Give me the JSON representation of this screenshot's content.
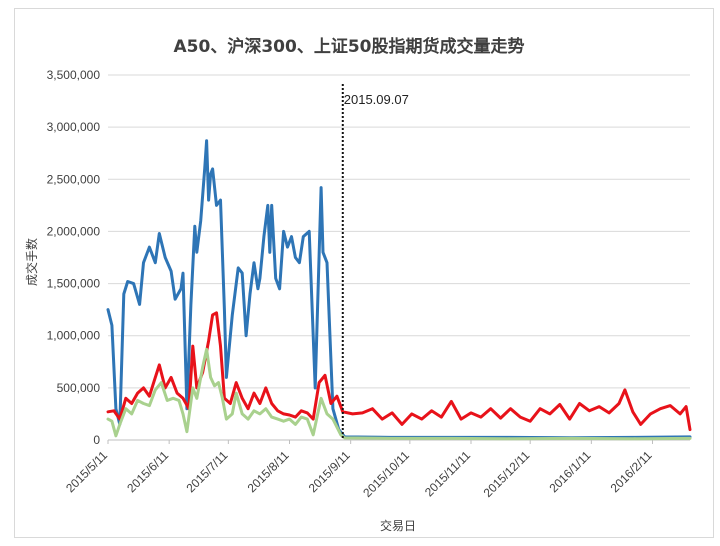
{
  "chart_data": {
    "type": "line",
    "title": "A50、沪深300、上证50股指期货成交量走势",
    "xlabel": "交易日",
    "ylabel": "成交手数",
    "ylim": [
      0,
      3500000
    ],
    "yticks": [
      "3,500,000",
      "3,000,000",
      "2,500,000",
      "2,000,000",
      "1,500,000",
      "1,000,000",
      "500,000",
      "0"
    ],
    "ytick_values": [
      3500000,
      3000000,
      2500000,
      2000000,
      1500000,
      1000000,
      500000,
      0
    ],
    "xlim": [
      "2015-05-11",
      "2016-03-01"
    ],
    "xticks": [
      {
        "label": "2015/5/11",
        "date": "2015-05-11"
      },
      {
        "label": "2015/6/11",
        "date": "2015-06-11"
      },
      {
        "label": "2015/7/11",
        "date": "2015-07-11"
      },
      {
        "label": "2015/8/11",
        "date": "2015-08-11"
      },
      {
        "label": "2015/9/11",
        "date": "2015-09-11"
      },
      {
        "label": "2015/10/11",
        "date": "2015-10-11"
      },
      {
        "label": "2015/11/11",
        "date": "2015-11-11"
      },
      {
        "label": "2015/12/11",
        "date": "2015-12-11"
      },
      {
        "label": "2016/1/11",
        "date": "2016-01-11"
      },
      {
        "label": "2016/2/11",
        "date": "2016-02-11"
      }
    ],
    "grid": true,
    "annotation": {
      "label": "2015.09.07",
      "date": "2015-09-07"
    },
    "series": [
      {
        "color": "#2e75b6",
        "points": [
          [
            "2015-05-11",
            1250000
          ],
          [
            "2015-05-13",
            1100000
          ],
          [
            "2015-05-15",
            300000
          ],
          [
            "2015-05-17",
            150000
          ],
          [
            "2015-05-19",
            1400000
          ],
          [
            "2015-05-21",
            1520000
          ],
          [
            "2015-05-24",
            1500000
          ],
          [
            "2015-05-27",
            1300000
          ],
          [
            "2015-05-29",
            1700000
          ],
          [
            "2015-06-01",
            1850000
          ],
          [
            "2015-06-04",
            1700000
          ],
          [
            "2015-06-06",
            1980000
          ],
          [
            "2015-06-09",
            1750000
          ],
          [
            "2015-06-12",
            1620000
          ],
          [
            "2015-06-14",
            1350000
          ],
          [
            "2015-06-17",
            1450000
          ],
          [
            "2015-06-18",
            1600000
          ],
          [
            "2015-06-20",
            300000
          ],
          [
            "2015-06-22",
            1300000
          ],
          [
            "2015-06-24",
            2050000
          ],
          [
            "2015-06-25",
            1800000
          ],
          [
            "2015-06-27",
            2100000
          ],
          [
            "2015-06-29",
            2600000
          ],
          [
            "2015-06-30",
            2870000
          ],
          [
            "2015-07-01",
            2300000
          ],
          [
            "2015-07-02",
            2550000
          ],
          [
            "2015-07-03",
            2600000
          ],
          [
            "2015-07-05",
            2250000
          ],
          [
            "2015-07-07",
            2300000
          ],
          [
            "2015-07-09",
            1250000
          ],
          [
            "2015-07-10",
            600000
          ],
          [
            "2015-07-13",
            1200000
          ],
          [
            "2015-07-16",
            1650000
          ],
          [
            "2015-07-18",
            1600000
          ],
          [
            "2015-07-20",
            1000000
          ],
          [
            "2015-07-22",
            1400000
          ],
          [
            "2015-07-24",
            1700000
          ],
          [
            "2015-07-26",
            1450000
          ],
          [
            "2015-07-27",
            1550000
          ],
          [
            "2015-07-29",
            1950000
          ],
          [
            "2015-07-31",
            2250000
          ],
          [
            "2015-08-01",
            1800000
          ],
          [
            "2015-08-02",
            2250000
          ],
          [
            "2015-08-04",
            1550000
          ],
          [
            "2015-08-06",
            1450000
          ],
          [
            "2015-08-08",
            2000000
          ],
          [
            "2015-08-10",
            1850000
          ],
          [
            "2015-08-12",
            1950000
          ],
          [
            "2015-08-14",
            1750000
          ],
          [
            "2015-08-16",
            1700000
          ],
          [
            "2015-08-18",
            1950000
          ],
          [
            "2015-08-21",
            2000000
          ],
          [
            "2015-08-24",
            500000
          ],
          [
            "2015-08-27",
            2420000
          ],
          [
            "2015-08-28",
            1800000
          ],
          [
            "2015-08-30",
            1700000
          ],
          [
            "2015-09-02",
            300000
          ],
          [
            "2015-09-05",
            100000
          ],
          [
            "2015-09-08",
            30000
          ],
          [
            "2015-10-01",
            25000
          ],
          [
            "2015-11-01",
            25000
          ],
          [
            "2015-12-01",
            25000
          ],
          [
            "2016-01-01",
            22000
          ],
          [
            "2016-02-01",
            25000
          ],
          [
            "2016-03-01",
            30000
          ]
        ]
      },
      {
        "color": "#e8121a",
        "points": [
          [
            "2015-05-11",
            270000
          ],
          [
            "2015-05-14",
            280000
          ],
          [
            "2015-05-17",
            200000
          ],
          [
            "2015-05-20",
            400000
          ],
          [
            "2015-05-23",
            350000
          ],
          [
            "2015-05-26",
            450000
          ],
          [
            "2015-05-29",
            500000
          ],
          [
            "2015-06-01",
            420000
          ],
          [
            "2015-06-04",
            600000
          ],
          [
            "2015-06-06",
            720000
          ],
          [
            "2015-06-09",
            500000
          ],
          [
            "2015-06-12",
            600000
          ],
          [
            "2015-06-15",
            450000
          ],
          [
            "2015-06-18",
            400000
          ],
          [
            "2015-06-21",
            300000
          ],
          [
            "2015-06-23",
            900000
          ],
          [
            "2015-06-25",
            500000
          ],
          [
            "2015-06-28",
            650000
          ],
          [
            "2015-07-01",
            950000
          ],
          [
            "2015-07-03",
            1200000
          ],
          [
            "2015-07-05",
            1220000
          ],
          [
            "2015-07-07",
            900000
          ],
          [
            "2015-07-09",
            400000
          ],
          [
            "2015-07-12",
            350000
          ],
          [
            "2015-07-15",
            550000
          ],
          [
            "2015-07-18",
            400000
          ],
          [
            "2015-07-21",
            300000
          ],
          [
            "2015-07-24",
            450000
          ],
          [
            "2015-07-27",
            350000
          ],
          [
            "2015-07-30",
            500000
          ],
          [
            "2015-08-02",
            350000
          ],
          [
            "2015-08-05",
            280000
          ],
          [
            "2015-08-08",
            250000
          ],
          [
            "2015-08-11",
            240000
          ],
          [
            "2015-08-14",
            220000
          ],
          [
            "2015-08-17",
            280000
          ],
          [
            "2015-08-20",
            260000
          ],
          [
            "2015-08-23",
            200000
          ],
          [
            "2015-08-26",
            550000
          ],
          [
            "2015-08-29",
            620000
          ],
          [
            "2015-09-01",
            350000
          ],
          [
            "2015-09-04",
            420000
          ],
          [
            "2015-09-07",
            270000
          ],
          [
            "2015-09-12",
            250000
          ],
          [
            "2015-09-17",
            260000
          ],
          [
            "2015-09-22",
            300000
          ],
          [
            "2015-09-27",
            200000
          ],
          [
            "2015-10-02",
            260000
          ],
          [
            "2015-10-07",
            150000
          ],
          [
            "2015-10-12",
            250000
          ],
          [
            "2015-10-17",
            200000
          ],
          [
            "2015-10-22",
            280000
          ],
          [
            "2015-10-27",
            220000
          ],
          [
            "2015-11-01",
            370000
          ],
          [
            "2015-11-06",
            200000
          ],
          [
            "2015-11-11",
            260000
          ],
          [
            "2015-11-16",
            220000
          ],
          [
            "2015-11-21",
            300000
          ],
          [
            "2015-11-26",
            210000
          ],
          [
            "2015-12-01",
            300000
          ],
          [
            "2015-12-06",
            220000
          ],
          [
            "2015-12-11",
            180000
          ],
          [
            "2015-12-16",
            300000
          ],
          [
            "2015-12-21",
            250000
          ],
          [
            "2015-12-26",
            340000
          ],
          [
            "2015-12-31",
            200000
          ],
          [
            "2016-01-05",
            350000
          ],
          [
            "2016-01-10",
            280000
          ],
          [
            "2016-01-15",
            320000
          ],
          [
            "2016-01-20",
            260000
          ],
          [
            "2016-01-25",
            350000
          ],
          [
            "2016-01-28",
            480000
          ],
          [
            "2016-02-01",
            270000
          ],
          [
            "2016-02-05",
            150000
          ],
          [
            "2016-02-10",
            250000
          ],
          [
            "2016-02-15",
            300000
          ],
          [
            "2016-02-20",
            330000
          ],
          [
            "2016-02-25",
            250000
          ],
          [
            "2016-02-28",
            320000
          ],
          [
            "2016-03-01",
            100000
          ]
        ]
      },
      {
        "color": "#a9d18e",
        "points": [
          [
            "2015-05-11",
            200000
          ],
          [
            "2015-05-13",
            180000
          ],
          [
            "2015-05-15",
            40000
          ],
          [
            "2015-05-17",
            150000
          ],
          [
            "2015-05-20",
            300000
          ],
          [
            "2015-05-23",
            250000
          ],
          [
            "2015-05-26",
            380000
          ],
          [
            "2015-05-29",
            350000
          ],
          [
            "2015-06-01",
            330000
          ],
          [
            "2015-06-04",
            480000
          ],
          [
            "2015-06-07",
            550000
          ],
          [
            "2015-06-10",
            380000
          ],
          [
            "2015-06-13",
            400000
          ],
          [
            "2015-06-16",
            380000
          ],
          [
            "2015-06-18",
            250000
          ],
          [
            "2015-06-20",
            80000
          ],
          [
            "2015-06-23",
            500000
          ],
          [
            "2015-06-25",
            400000
          ],
          [
            "2015-06-28",
            700000
          ],
          [
            "2015-06-30",
            870000
          ],
          [
            "2015-07-02",
            600000
          ],
          [
            "2015-07-04",
            520000
          ],
          [
            "2015-07-06",
            550000
          ],
          [
            "2015-07-08",
            400000
          ],
          [
            "2015-07-10",
            200000
          ],
          [
            "2015-07-13",
            250000
          ],
          [
            "2015-07-15",
            450000
          ],
          [
            "2015-07-18",
            250000
          ],
          [
            "2015-07-21",
            200000
          ],
          [
            "2015-07-24",
            280000
          ],
          [
            "2015-07-27",
            250000
          ],
          [
            "2015-07-30",
            300000
          ],
          [
            "2015-08-02",
            220000
          ],
          [
            "2015-08-05",
            200000
          ],
          [
            "2015-08-08",
            180000
          ],
          [
            "2015-08-11",
            200000
          ],
          [
            "2015-08-14",
            150000
          ],
          [
            "2015-08-17",
            220000
          ],
          [
            "2015-08-20",
            200000
          ],
          [
            "2015-08-23",
            50000
          ],
          [
            "2015-08-27",
            400000
          ],
          [
            "2015-08-30",
            250000
          ],
          [
            "2015-09-02",
            200000
          ],
          [
            "2015-09-06",
            50000
          ],
          [
            "2015-09-08",
            20000
          ],
          [
            "2015-10-01",
            15000
          ],
          [
            "2015-11-01",
            15000
          ],
          [
            "2015-12-01",
            12000
          ],
          [
            "2016-01-01",
            15000
          ],
          [
            "2016-02-01",
            12000
          ],
          [
            "2016-03-01",
            15000
          ]
        ]
      }
    ]
  }
}
